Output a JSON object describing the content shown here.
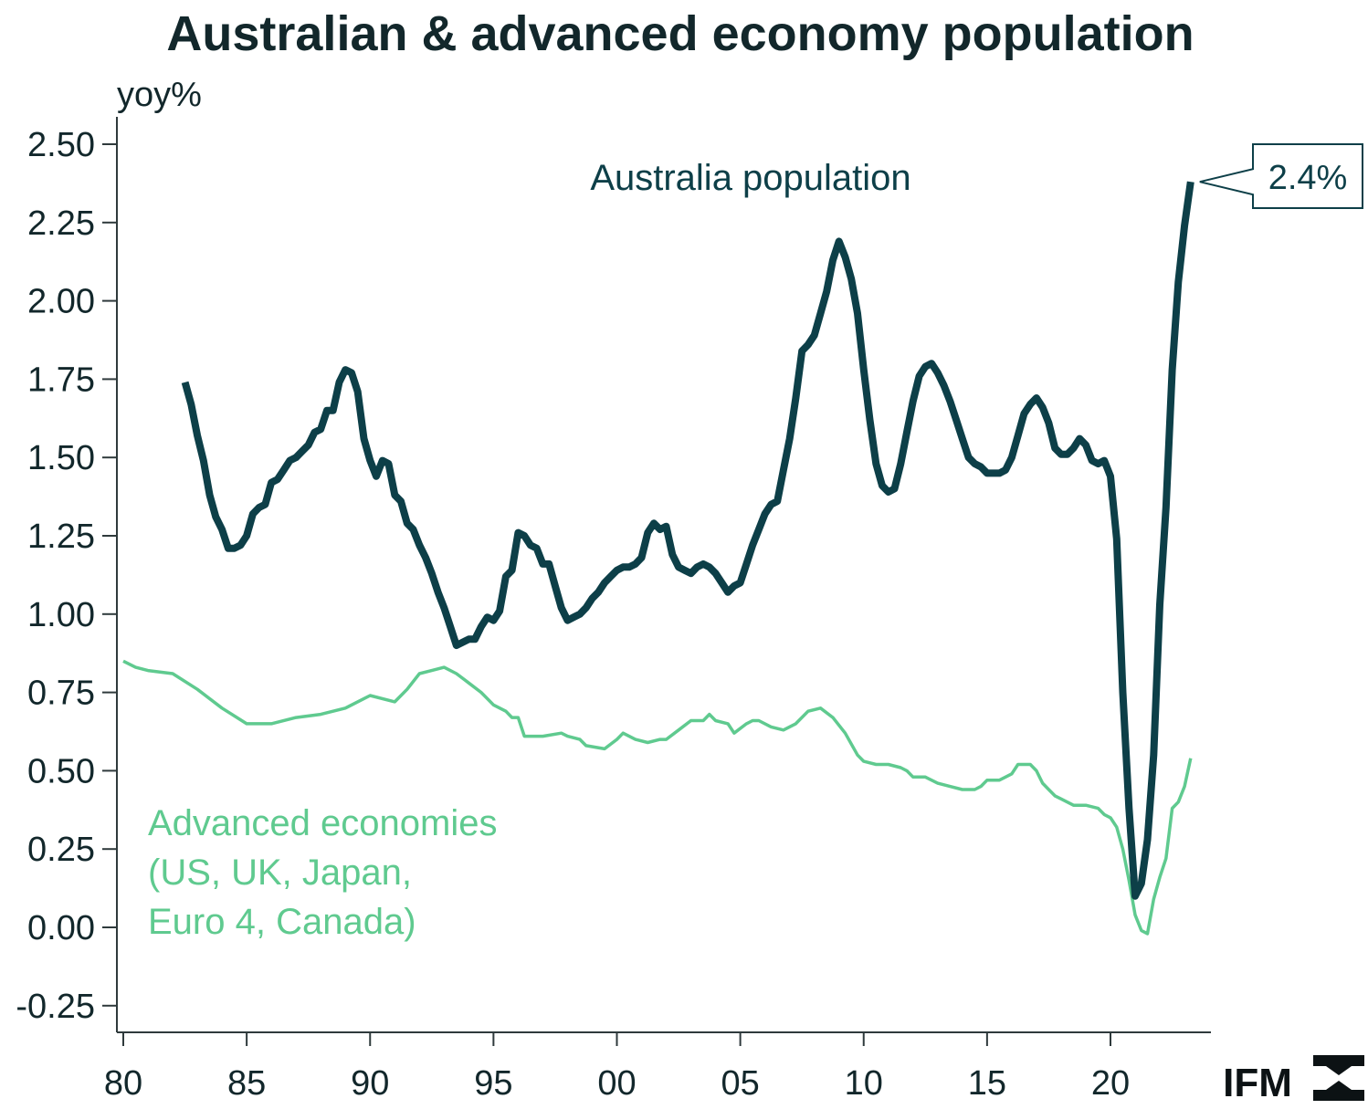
{
  "colors": {
    "australia": "#0d3f48",
    "advanced": "#5fca8f",
    "text": "#12272b",
    "axis": "#2f3a3c"
  },
  "logo": {
    "text": "IFM",
    "icon": "ifm-logo-icon"
  },
  "chart_data": {
    "type": "line",
    "title": "Australian & advanced economy population",
    "ylabel": "yoy%",
    "xlabel": "",
    "xlim": [
      1979.75,
      2024.1
    ],
    "ylim": [
      -0.3,
      2.6
    ],
    "grid": false,
    "x_ticks": [
      {
        "value": 1980,
        "label": "80"
      },
      {
        "value": 1985,
        "label": "85"
      },
      {
        "value": 1990,
        "label": "90"
      },
      {
        "value": 1995,
        "label": "95"
      },
      {
        "value": 2000,
        "label": "00"
      },
      {
        "value": 2005,
        "label": "05"
      },
      {
        "value": 2010,
        "label": "10"
      },
      {
        "value": 2015,
        "label": "15"
      },
      {
        "value": 2020,
        "label": "20"
      }
    ],
    "y_ticks": [
      {
        "value": 2.5,
        "label": "2.50"
      },
      {
        "value": 2.25,
        "label": "2.25"
      },
      {
        "value": 2.0,
        "label": "2.00"
      },
      {
        "value": 1.75,
        "label": "1.75"
      },
      {
        "value": 1.5,
        "label": "1.50"
      },
      {
        "value": 1.25,
        "label": "1.25"
      },
      {
        "value": 1.0,
        "label": "1.00"
      },
      {
        "value": 0.75,
        "label": "0.75"
      },
      {
        "value": 0.5,
        "label": "0.50"
      },
      {
        "value": 0.25,
        "label": "0.25"
      },
      {
        "value": 0.0,
        "label": "0.00"
      },
      {
        "value": -0.25,
        "label": "-0.25"
      }
    ],
    "series": [
      {
        "name": "Australia population",
        "label_lines": [
          "Australia population"
        ],
        "color_key": "australia",
        "end_label": "2.4%",
        "points": [
          [
            1982.5,
            1.74
          ],
          [
            1982.75,
            1.67
          ],
          [
            1983.0,
            1.57
          ],
          [
            1983.25,
            1.49
          ],
          [
            1983.5,
            1.38
          ],
          [
            1983.75,
            1.31
          ],
          [
            1984.0,
            1.27
          ],
          [
            1984.25,
            1.21
          ],
          [
            1984.5,
            1.21
          ],
          [
            1984.75,
            1.22
          ],
          [
            1985.0,
            1.25
          ],
          [
            1985.25,
            1.32
          ],
          [
            1985.5,
            1.34
          ],
          [
            1985.75,
            1.35
          ],
          [
            1986.0,
            1.42
          ],
          [
            1986.25,
            1.43
          ],
          [
            1986.5,
            1.46
          ],
          [
            1986.75,
            1.49
          ],
          [
            1987.0,
            1.5
          ],
          [
            1987.25,
            1.52
          ],
          [
            1987.5,
            1.54
          ],
          [
            1987.75,
            1.58
          ],
          [
            1988.0,
            1.59
          ],
          [
            1988.25,
            1.65
          ],
          [
            1988.5,
            1.65
          ],
          [
            1988.75,
            1.74
          ],
          [
            1989.0,
            1.78
          ],
          [
            1989.25,
            1.77
          ],
          [
            1989.5,
            1.71
          ],
          [
            1989.75,
            1.56
          ],
          [
            1990.0,
            1.49
          ],
          [
            1990.25,
            1.44
          ],
          [
            1990.5,
            1.49
          ],
          [
            1990.75,
            1.48
          ],
          [
            1991.0,
            1.38
          ],
          [
            1991.25,
            1.36
          ],
          [
            1991.5,
            1.29
          ],
          [
            1991.75,
            1.27
          ],
          [
            1992.0,
            1.22
          ],
          [
            1992.25,
            1.18
          ],
          [
            1992.5,
            1.13
          ],
          [
            1992.75,
            1.07
          ],
          [
            1993.0,
            1.02
          ],
          [
            1993.25,
            0.96
          ],
          [
            1993.5,
            0.9
          ],
          [
            1993.75,
            0.91
          ],
          [
            1994.0,
            0.92
          ],
          [
            1994.25,
            0.92
          ],
          [
            1994.5,
            0.96
          ],
          [
            1994.75,
            0.99
          ],
          [
            1995.0,
            0.98
          ],
          [
            1995.25,
            1.01
          ],
          [
            1995.5,
            1.12
          ],
          [
            1995.75,
            1.14
          ],
          [
            1996.0,
            1.26
          ],
          [
            1996.25,
            1.25
          ],
          [
            1996.5,
            1.22
          ],
          [
            1996.75,
            1.21
          ],
          [
            1997.0,
            1.16
          ],
          [
            1997.25,
            1.16
          ],
          [
            1997.5,
            1.09
          ],
          [
            1997.75,
            1.02
          ],
          [
            1998.0,
            0.98
          ],
          [
            1998.25,
            0.99
          ],
          [
            1998.5,
            1.0
          ],
          [
            1998.75,
            1.02
          ],
          [
            1999.0,
            1.05
          ],
          [
            1999.25,
            1.07
          ],
          [
            1999.5,
            1.1
          ],
          [
            1999.75,
            1.12
          ],
          [
            2000.0,
            1.14
          ],
          [
            2000.25,
            1.15
          ],
          [
            2000.5,
            1.15
          ],
          [
            2000.75,
            1.16
          ],
          [
            2001.0,
            1.18
          ],
          [
            2001.25,
            1.26
          ],
          [
            2001.5,
            1.29
          ],
          [
            2001.75,
            1.27
          ],
          [
            2002.0,
            1.28
          ],
          [
            2002.25,
            1.19
          ],
          [
            2002.5,
            1.15
          ],
          [
            2002.75,
            1.14
          ],
          [
            2003.0,
            1.13
          ],
          [
            2003.25,
            1.15
          ],
          [
            2003.5,
            1.16
          ],
          [
            2003.75,
            1.15
          ],
          [
            2004.0,
            1.13
          ],
          [
            2004.25,
            1.1
          ],
          [
            2004.5,
            1.07
          ],
          [
            2004.75,
            1.09
          ],
          [
            2005.0,
            1.1
          ],
          [
            2005.25,
            1.16
          ],
          [
            2005.5,
            1.22
          ],
          [
            2005.75,
            1.27
          ],
          [
            2006.0,
            1.32
          ],
          [
            2006.25,
            1.35
          ],
          [
            2006.5,
            1.36
          ],
          [
            2006.75,
            1.46
          ],
          [
            2007.0,
            1.56
          ],
          [
            2007.25,
            1.69
          ],
          [
            2007.5,
            1.84
          ],
          [
            2007.75,
            1.86
          ],
          [
            2008.0,
            1.89
          ],
          [
            2008.25,
            1.96
          ],
          [
            2008.5,
            2.03
          ],
          [
            2008.75,
            2.13
          ],
          [
            2009.0,
            2.19
          ],
          [
            2009.25,
            2.14
          ],
          [
            2009.5,
            2.07
          ],
          [
            2009.75,
            1.96
          ],
          [
            2010.0,
            1.78
          ],
          [
            2010.25,
            1.62
          ],
          [
            2010.5,
            1.48
          ],
          [
            2010.75,
            1.41
          ],
          [
            2011.0,
            1.39
          ],
          [
            2011.25,
            1.4
          ],
          [
            2011.5,
            1.48
          ],
          [
            2011.75,
            1.58
          ],
          [
            2012.0,
            1.68
          ],
          [
            2012.25,
            1.76
          ],
          [
            2012.5,
            1.79
          ],
          [
            2012.75,
            1.8
          ],
          [
            2013.0,
            1.77
          ],
          [
            2013.25,
            1.73
          ],
          [
            2013.5,
            1.68
          ],
          [
            2013.75,
            1.62
          ],
          [
            2014.0,
            1.56
          ],
          [
            2014.25,
            1.5
          ],
          [
            2014.5,
            1.48
          ],
          [
            2014.75,
            1.47
          ],
          [
            2015.0,
            1.45
          ],
          [
            2015.25,
            1.45
          ],
          [
            2015.5,
            1.45
          ],
          [
            2015.75,
            1.46
          ],
          [
            2016.0,
            1.5
          ],
          [
            2016.25,
            1.57
          ],
          [
            2016.5,
            1.64
          ],
          [
            2016.75,
            1.67
          ],
          [
            2017.0,
            1.69
          ],
          [
            2017.25,
            1.66
          ],
          [
            2017.5,
            1.61
          ],
          [
            2017.75,
            1.53
          ],
          [
            2018.0,
            1.51
          ],
          [
            2018.25,
            1.51
          ],
          [
            2018.5,
            1.53
          ],
          [
            2018.75,
            1.56
          ],
          [
            2019.0,
            1.54
          ],
          [
            2019.25,
            1.49
          ],
          [
            2019.5,
            1.48
          ],
          [
            2019.75,
            1.49
          ],
          [
            2020.0,
            1.44
          ],
          [
            2020.25,
            1.24
          ],
          [
            2020.5,
            0.75
          ],
          [
            2020.75,
            0.38
          ],
          [
            2021.0,
            0.1
          ],
          [
            2021.25,
            0.14
          ],
          [
            2021.5,
            0.28
          ],
          [
            2021.75,
            0.55
          ],
          [
            2022.0,
            1.03
          ],
          [
            2022.25,
            1.34
          ],
          [
            2022.5,
            1.78
          ],
          [
            2022.75,
            2.06
          ],
          [
            2023.0,
            2.24
          ],
          [
            2023.25,
            2.38
          ]
        ]
      },
      {
        "name": "Advanced economies (US, UK, Japan, Euro 4, Canada)",
        "label_lines": [
          "Advanced economies",
          "(US, UK, Japan,",
          "Euro 4, Canada)"
        ],
        "color_key": "advanced",
        "points": [
          [
            1980.0,
            0.85
          ],
          [
            1980.5,
            0.83
          ],
          [
            1981.0,
            0.82
          ],
          [
            1982.0,
            0.81
          ],
          [
            1983.0,
            0.76
          ],
          [
            1984.0,
            0.7
          ],
          [
            1985.0,
            0.65
          ],
          [
            1986.0,
            0.65
          ],
          [
            1987.0,
            0.67
          ],
          [
            1988.0,
            0.68
          ],
          [
            1989.0,
            0.7
          ],
          [
            1990.0,
            0.74
          ],
          [
            1991.0,
            0.72
          ],
          [
            1991.5,
            0.76
          ],
          [
            1992.0,
            0.81
          ],
          [
            1992.5,
            0.82
          ],
          [
            1993.0,
            0.83
          ],
          [
            1993.5,
            0.81
          ],
          [
            1994.0,
            0.78
          ],
          [
            1994.5,
            0.75
          ],
          [
            1995.0,
            0.71
          ],
          [
            1995.5,
            0.69
          ],
          [
            1995.75,
            0.67
          ],
          [
            1996.0,
            0.67
          ],
          [
            1996.25,
            0.61
          ],
          [
            1997.0,
            0.61
          ],
          [
            1997.75,
            0.62
          ],
          [
            1998.0,
            0.61
          ],
          [
            1998.5,
            0.6
          ],
          [
            1998.75,
            0.58
          ],
          [
            1999.5,
            0.57
          ],
          [
            2000.0,
            0.6
          ],
          [
            2000.25,
            0.62
          ],
          [
            2000.75,
            0.6
          ],
          [
            2001.25,
            0.59
          ],
          [
            2001.75,
            0.6
          ],
          [
            2002.0,
            0.6
          ],
          [
            2002.5,
            0.63
          ],
          [
            2003.0,
            0.66
          ],
          [
            2003.5,
            0.66
          ],
          [
            2003.75,
            0.68
          ],
          [
            2004.0,
            0.66
          ],
          [
            2004.5,
            0.65
          ],
          [
            2004.75,
            0.62
          ],
          [
            2005.25,
            0.65
          ],
          [
            2005.5,
            0.66
          ],
          [
            2005.75,
            0.66
          ],
          [
            2006.25,
            0.64
          ],
          [
            2006.75,
            0.63
          ],
          [
            2007.25,
            0.65
          ],
          [
            2007.75,
            0.69
          ],
          [
            2008.25,
            0.7
          ],
          [
            2008.75,
            0.67
          ],
          [
            2009.25,
            0.62
          ],
          [
            2009.75,
            0.55
          ],
          [
            2010.0,
            0.53
          ],
          [
            2010.5,
            0.52
          ],
          [
            2011.0,
            0.52
          ],
          [
            2011.5,
            0.51
          ],
          [
            2011.75,
            0.5
          ],
          [
            2012.0,
            0.48
          ],
          [
            2012.5,
            0.48
          ],
          [
            2013.0,
            0.46
          ],
          [
            2013.5,
            0.45
          ],
          [
            2014.0,
            0.44
          ],
          [
            2014.5,
            0.44
          ],
          [
            2014.75,
            0.45
          ],
          [
            2015.0,
            0.47
          ],
          [
            2015.5,
            0.47
          ],
          [
            2015.75,
            0.48
          ],
          [
            2016.0,
            0.49
          ],
          [
            2016.25,
            0.52
          ],
          [
            2016.5,
            0.52
          ],
          [
            2016.75,
            0.52
          ],
          [
            2017.0,
            0.5
          ],
          [
            2017.25,
            0.46
          ],
          [
            2017.5,
            0.44
          ],
          [
            2017.75,
            0.42
          ],
          [
            2018.0,
            0.41
          ],
          [
            2018.5,
            0.39
          ],
          [
            2019.0,
            0.39
          ],
          [
            2019.5,
            0.38
          ],
          [
            2019.75,
            0.36
          ],
          [
            2020.0,
            0.35
          ],
          [
            2020.25,
            0.32
          ],
          [
            2020.5,
            0.25
          ],
          [
            2020.75,
            0.15
          ],
          [
            2021.0,
            0.04
          ],
          [
            2021.25,
            -0.01
          ],
          [
            2021.5,
            -0.02
          ],
          [
            2021.75,
            0.09
          ],
          [
            2022.0,
            0.16
          ],
          [
            2022.25,
            0.22
          ],
          [
            2022.5,
            0.38
          ],
          [
            2022.75,
            0.4
          ],
          [
            2023.0,
            0.45
          ],
          [
            2023.25,
            0.54
          ]
        ]
      }
    ]
  }
}
